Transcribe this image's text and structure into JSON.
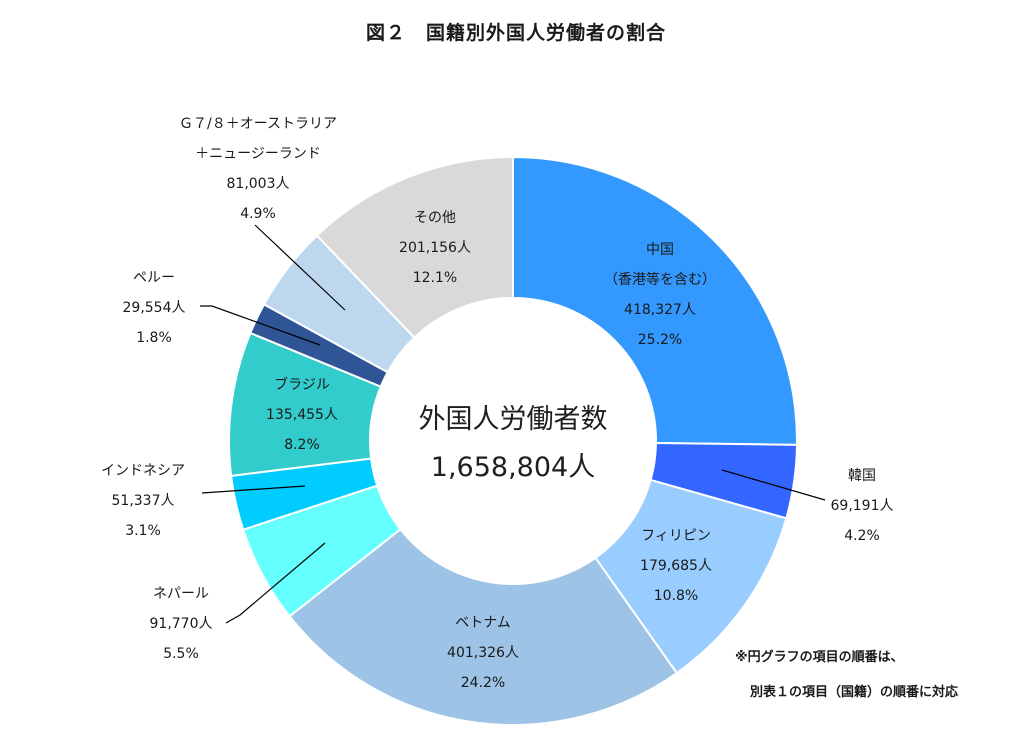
{
  "chart_data": {
    "type": "pie",
    "title": "図２　国籍別外国人労働者の割合",
    "center": {
      "title": "外国人労働者数",
      "total": "1,658,804人"
    },
    "slices": [
      {
        "label": [
          "中国",
          "（香港等を含む）"
        ],
        "count": "418,327人",
        "percent": 25.2,
        "value": 418327,
        "color": "#3399ff"
      },
      {
        "label": [
          "韓国"
        ],
        "count": "69,191人",
        "percent": 4.2,
        "value": 69191,
        "color": "#3366ff"
      },
      {
        "label": [
          "フィリピン"
        ],
        "count": "179,685人",
        "percent": 10.8,
        "value": 179685,
        "color": "#99ccff"
      },
      {
        "label": [
          "ベトナム"
        ],
        "count": "401,326人",
        "percent": 24.2,
        "value": 401326,
        "color": "#9dc3e6"
      },
      {
        "label": [
          "ネパール"
        ],
        "count": "91,770人",
        "percent": 5.5,
        "value": 91770,
        "color": "#66ffff"
      },
      {
        "label": [
          "インドネシア"
        ],
        "count": "51,337人",
        "percent": 3.1,
        "value": 51337,
        "color": "#00ccff"
      },
      {
        "label": [
          "ブラジル"
        ],
        "count": "135,455人",
        "percent": 8.2,
        "value": 135455,
        "color": "#33cccc"
      },
      {
        "label": [
          "ペルー"
        ],
        "count": "29,554人",
        "percent": 1.8,
        "value": 29554,
        "color": "#2f5597"
      },
      {
        "label": [
          "Ｇ７/８＋オーストラリア",
          "＋ニュージーランド"
        ],
        "count": "81,003人",
        "percent": 4.9,
        "value": 81003,
        "color": "#bdd7ee"
      },
      {
        "label": [
          "その他"
        ],
        "count": "201,156人",
        "percent": 12.1,
        "value": 201156,
        "color": "#d9d9d9"
      }
    ]
  },
  "note": {
    "line1": "※円グラフの項目の順番は、",
    "line2": "別表１の項目（国籍）の順番に対応"
  }
}
